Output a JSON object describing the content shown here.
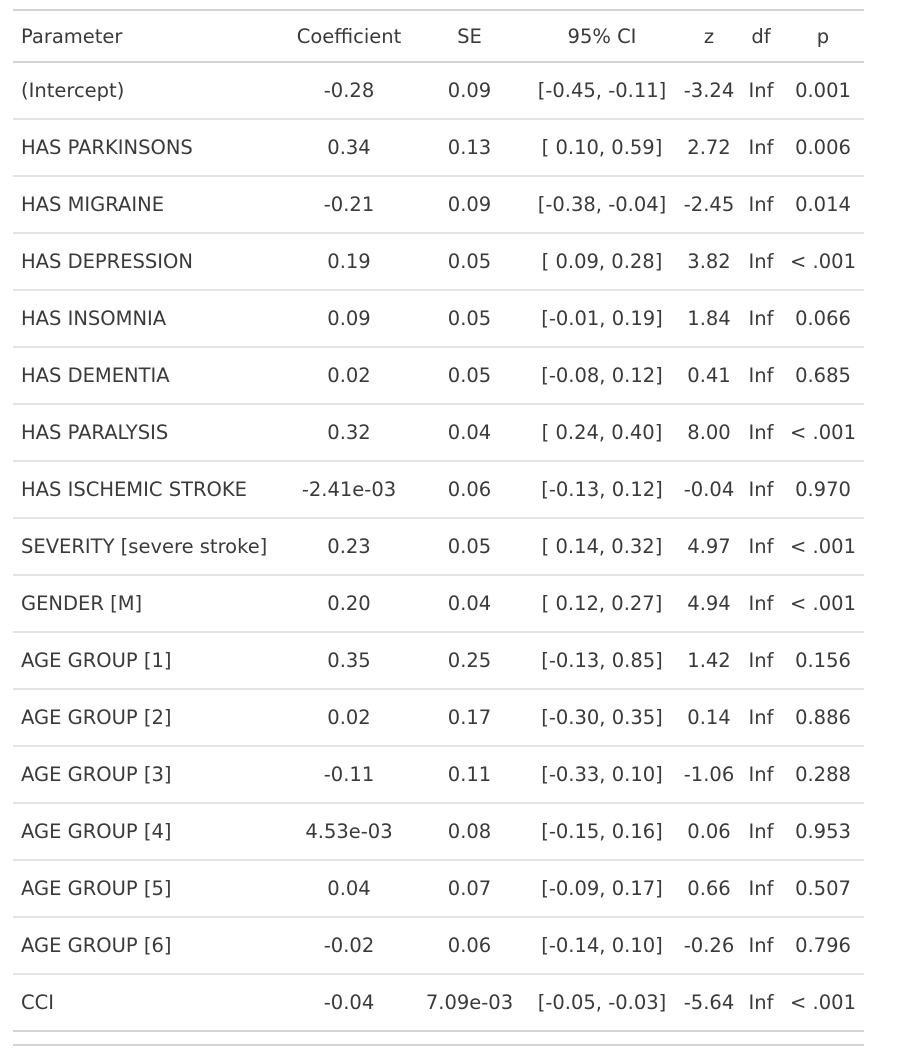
{
  "table": {
    "headers": {
      "parameter": "Parameter",
      "coefficient": "Coefficient",
      "se": "SE",
      "ci": "95% CI",
      "z": "z",
      "df": "df",
      "p": "p"
    },
    "rows": [
      {
        "parameter": "(Intercept)",
        "coefficient": "-0.28",
        "se": "0.09",
        "ci": "[-0.45, -0.11]",
        "z": "-3.24",
        "df": "Inf",
        "p": "0.001"
      },
      {
        "parameter": "HAS PARKINSONS",
        "coefficient": "0.34",
        "se": "0.13",
        "ci": "[ 0.10, 0.59]",
        "z": "2.72",
        "df": "Inf",
        "p": "0.006"
      },
      {
        "parameter": "HAS MIGRAINE",
        "coefficient": "-0.21",
        "se": "0.09",
        "ci": "[-0.38, -0.04]",
        "z": "-2.45",
        "df": "Inf",
        "p": "0.014"
      },
      {
        "parameter": "HAS DEPRESSION",
        "coefficient": "0.19",
        "se": "0.05",
        "ci": "[ 0.09, 0.28]",
        "z": "3.82",
        "df": "Inf",
        "p": "< .001"
      },
      {
        "parameter": "HAS INSOMNIA",
        "coefficient": "0.09",
        "se": "0.05",
        "ci": "[-0.01, 0.19]",
        "z": "1.84",
        "df": "Inf",
        "p": "0.066"
      },
      {
        "parameter": "HAS DEMENTIA",
        "coefficient": "0.02",
        "se": "0.05",
        "ci": "[-0.08, 0.12]",
        "z": "0.41",
        "df": "Inf",
        "p": "0.685"
      },
      {
        "parameter": "HAS PARALYSIS",
        "coefficient": "0.32",
        "se": "0.04",
        "ci": "[ 0.24, 0.40]",
        "z": "8.00",
        "df": "Inf",
        "p": "< .001"
      },
      {
        "parameter": "HAS ISCHEMIC STROKE",
        "coefficient": "-2.41e-03",
        "se": "0.06",
        "ci": "[-0.13, 0.12]",
        "z": "-0.04",
        "df": "Inf",
        "p": "0.970"
      },
      {
        "parameter": "SEVERITY [severe stroke]",
        "coefficient": "0.23",
        "se": "0.05",
        "ci": "[ 0.14, 0.32]",
        "z": "4.97",
        "df": "Inf",
        "p": "< .001"
      },
      {
        "parameter": "GENDER [M]",
        "coefficient": "0.20",
        "se": "0.04",
        "ci": "[ 0.12, 0.27]",
        "z": "4.94",
        "df": "Inf",
        "p": "< .001"
      },
      {
        "parameter": "AGE GROUP [1]",
        "coefficient": "0.35",
        "se": "0.25",
        "ci": "[-0.13, 0.85]",
        "z": "1.42",
        "df": "Inf",
        "p": "0.156"
      },
      {
        "parameter": "AGE GROUP [2]",
        "coefficient": "0.02",
        "se": "0.17",
        "ci": "[-0.30, 0.35]",
        "z": "0.14",
        "df": "Inf",
        "p": "0.886"
      },
      {
        "parameter": "AGE GROUP [3]",
        "coefficient": "-0.11",
        "se": "0.11",
        "ci": "[-0.33, 0.10]",
        "z": "-1.06",
        "df": "Inf",
        "p": "0.288"
      },
      {
        "parameter": "AGE GROUP [4]",
        "coefficient": "4.53e-03",
        "se": "0.08",
        "ci": "[-0.15, 0.16]",
        "z": "0.06",
        "df": "Inf",
        "p": "0.953"
      },
      {
        "parameter": "AGE GROUP [5]",
        "coefficient": "0.04",
        "se": "0.07",
        "ci": "[-0.09, 0.17]",
        "z": "0.66",
        "df": "Inf",
        "p": "0.507"
      },
      {
        "parameter": "AGE GROUP [6]",
        "coefficient": "-0.02",
        "se": "0.06",
        "ci": "[-0.14, 0.10]",
        "z": "-0.26",
        "df": "Inf",
        "p": "0.796"
      },
      {
        "parameter": "CCI",
        "coefficient": "-0.04",
        "se": "7.09e-03",
        "ci": "[-0.05, -0.03]",
        "z": "-5.64",
        "df": "Inf",
        "p": "< .001"
      }
    ]
  }
}
